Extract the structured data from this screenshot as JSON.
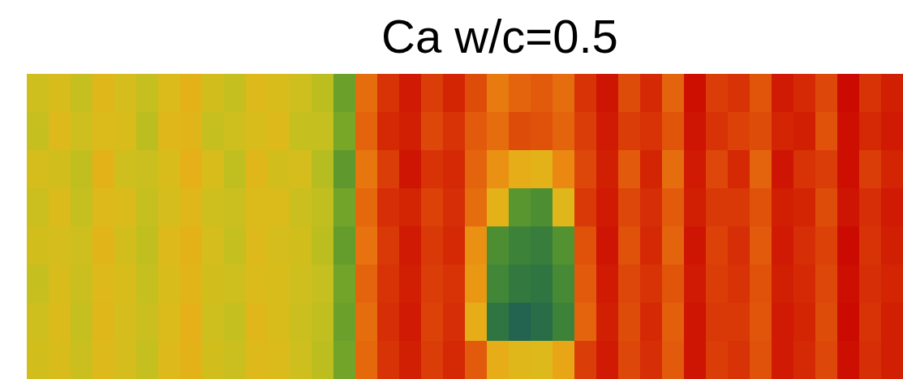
{
  "chart_data": {
    "type": "heatmap",
    "title": "Ca w/c=0.5",
    "tick_labels": false,
    "zlim": [
      0,
      1
    ],
    "cells": [
      [
        0.52,
        0.55,
        0.5,
        0.58,
        0.54,
        0.5,
        0.56,
        0.6,
        0.53,
        0.5,
        0.57,
        0.55,
        0.52,
        0.48,
        0.35,
        0.78,
        0.9,
        0.95,
        0.88,
        0.93,
        0.85,
        0.75,
        0.8,
        0.82,
        0.78,
        0.9,
        0.96,
        0.85,
        0.92,
        0.8,
        0.97,
        0.88,
        0.9,
        0.83,
        0.95,
        0.92,
        0.86,
        0.98,
        0.9,
        0.94
      ],
      [
        0.5,
        0.57,
        0.52,
        0.56,
        0.55,
        0.48,
        0.58,
        0.59,
        0.5,
        0.52,
        0.55,
        0.57,
        0.5,
        0.5,
        0.37,
        0.8,
        0.92,
        0.94,
        0.86,
        0.9,
        0.82,
        0.78,
        0.85,
        0.84,
        0.8,
        0.88,
        0.95,
        0.88,
        0.9,
        0.83,
        0.96,
        0.9,
        0.87,
        0.85,
        0.93,
        0.94,
        0.84,
        0.97,
        0.92,
        0.95
      ],
      [
        0.54,
        0.53,
        0.49,
        0.6,
        0.52,
        0.51,
        0.55,
        0.61,
        0.55,
        0.49,
        0.58,
        0.53,
        0.54,
        0.47,
        0.33,
        0.76,
        0.88,
        0.96,
        0.9,
        0.92,
        0.8,
        0.7,
        0.62,
        0.6,
        0.72,
        0.86,
        0.94,
        0.82,
        0.93,
        0.78,
        0.95,
        0.86,
        0.92,
        0.8,
        0.96,
        0.9,
        0.88,
        0.97,
        0.88,
        0.93
      ],
      [
        0.51,
        0.56,
        0.5,
        0.57,
        0.56,
        0.5,
        0.54,
        0.58,
        0.52,
        0.51,
        0.56,
        0.56,
        0.51,
        0.49,
        0.36,
        0.79,
        0.91,
        0.93,
        0.87,
        0.91,
        0.78,
        0.6,
        0.32,
        0.3,
        0.58,
        0.89,
        0.95,
        0.86,
        0.91,
        0.82,
        0.94,
        0.89,
        0.89,
        0.84,
        0.94,
        0.93,
        0.85,
        0.96,
        0.91,
        0.95
      ],
      [
        0.53,
        0.54,
        0.52,
        0.59,
        0.53,
        0.49,
        0.57,
        0.6,
        0.54,
        0.5,
        0.57,
        0.54,
        0.53,
        0.48,
        0.34,
        0.77,
        0.89,
        0.95,
        0.89,
        0.92,
        0.7,
        0.3,
        0.27,
        0.26,
        0.31,
        0.84,
        0.96,
        0.84,
        0.92,
        0.8,
        0.96,
        0.87,
        0.91,
        0.82,
        0.95,
        0.91,
        0.87,
        0.98,
        0.9,
        0.94
      ],
      [
        0.5,
        0.55,
        0.51,
        0.57,
        0.55,
        0.5,
        0.55,
        0.59,
        0.53,
        0.52,
        0.56,
        0.55,
        0.52,
        0.5,
        0.36,
        0.8,
        0.9,
        0.94,
        0.88,
        0.9,
        0.68,
        0.28,
        0.25,
        0.24,
        0.29,
        0.82,
        0.95,
        0.86,
        0.9,
        0.83,
        0.95,
        0.88,
        0.9,
        0.84,
        0.94,
        0.92,
        0.86,
        0.97,
        0.91,
        0.93
      ],
      [
        0.52,
        0.56,
        0.5,
        0.58,
        0.54,
        0.51,
        0.56,
        0.61,
        0.52,
        0.5,
        0.58,
        0.55,
        0.51,
        0.49,
        0.35,
        0.78,
        0.91,
        0.95,
        0.87,
        0.91,
        0.62,
        0.24,
        0.2,
        0.22,
        0.27,
        0.8,
        0.94,
        0.85,
        0.92,
        0.81,
        0.96,
        0.89,
        0.89,
        0.83,
        0.95,
        0.93,
        0.85,
        0.98,
        0.9,
        0.94
      ],
      [
        0.53,
        0.55,
        0.51,
        0.57,
        0.54,
        0.5,
        0.57,
        0.6,
        0.53,
        0.51,
        0.57,
        0.56,
        0.52,
        0.48,
        0.36,
        0.79,
        0.9,
        0.94,
        0.88,
        0.92,
        0.82,
        0.62,
        0.58,
        0.57,
        0.64,
        0.88,
        0.95,
        0.86,
        0.91,
        0.82,
        0.96,
        0.88,
        0.9,
        0.84,
        0.95,
        0.92,
        0.86,
        0.97,
        0.91,
        0.94
      ]
    ]
  }
}
